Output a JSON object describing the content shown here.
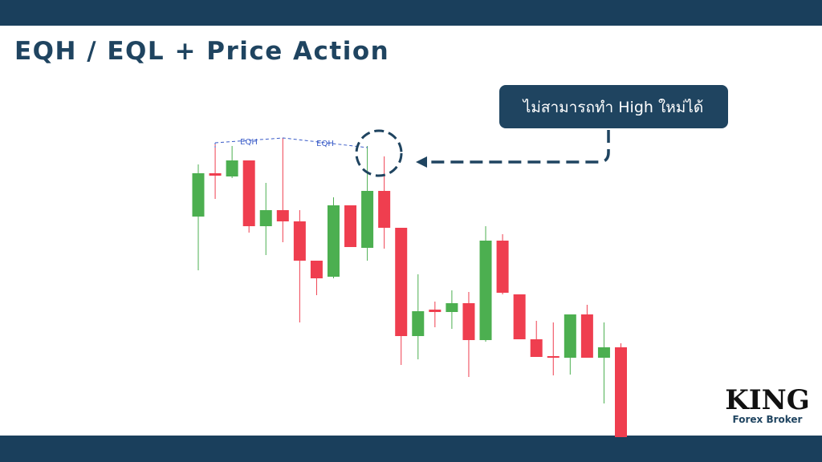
{
  "title": "EQH / EQL + Price Action",
  "logo": {
    "name": "KING",
    "subtitle": "Forex Broker"
  },
  "chart_data": {
    "type": "candlestick",
    "up_color": "#4caf50",
    "down_color": "#ef3e4f",
    "ylim": [
      0,
      400
    ],
    "annotations": {
      "eqh_left": "EQH",
      "eqh_right": "EQH",
      "callout": "ไม่สามารถทำ High ใหม่ได้"
    },
    "open": [
      275,
      329,
      325,
      345,
      263,
      283,
      269,
      220,
      200,
      289,
      236,
      307,
      261,
      126,
      159,
      156,
      167,
      121,
      245,
      178,
      122,
      101,
      99,
      153,
      99,
      112
    ],
    "high": [
      340,
      365,
      363,
      345,
      317,
      373,
      283,
      220,
      299,
      289,
      363,
      350,
      261,
      203,
      169,
      183,
      181,
      263,
      253,
      178,
      145,
      143,
      153,
      165,
      143,
      117
    ],
    "low": [
      208,
      297,
      323,
      255,
      227,
      243,
      143,
      177,
      198,
      237,
      220,
      235,
      90,
      97,
      137,
      135,
      75,
      119,
      178,
      122,
      100,
      77,
      78,
      99,
      42,
      0
    ],
    "close": [
      329,
      326,
      345,
      263,
      283,
      269,
      220,
      198,
      289,
      237,
      307,
      261,
      126,
      157,
      156,
      167,
      121,
      245,
      180,
      122,
      100,
      99,
      153,
      99,
      112,
      0
    ]
  }
}
